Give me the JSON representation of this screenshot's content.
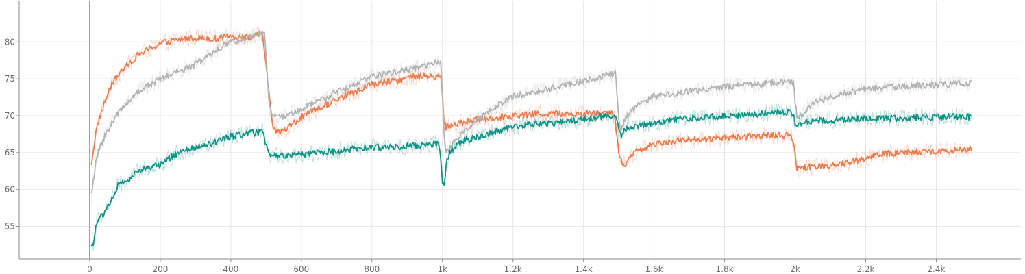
{
  "chart_data": {
    "type": "line",
    "title": "",
    "xlabel": "",
    "ylabel": "",
    "xlim": [
      -200,
      2640
    ],
    "ylim": [
      50.6,
      85.5
    ],
    "grid": true,
    "legend": "none",
    "x_ticks": [
      0,
      200,
      400,
      600,
      800,
      1000,
      1200,
      1400,
      1600,
      1800,
      2000,
      2200,
      2400
    ],
    "x_tick_labels": [
      "0",
      "200",
      "400",
      "600",
      "800",
      "1k",
      "1.2k",
      "1.4k",
      "1.6k",
      "1.8k",
      "2k",
      "2.2k",
      "2.4k"
    ],
    "y_ticks": [
      55,
      60,
      65,
      70,
      75,
      80
    ],
    "y_tick_labels": [
      "55",
      "60",
      "65",
      "70",
      "75",
      "80"
    ],
    "series": [
      {
        "color": "#ef7b4d",
        "x": [
          5,
          20,
          40,
          60,
          80,
          100,
          130,
          160,
          200,
          250,
          300,
          350,
          400,
          450,
          490,
          500,
          510,
          520,
          540,
          560,
          600,
          650,
          700,
          750,
          800,
          850,
          900,
          950,
          980,
          995,
          1000,
          1005,
          1010,
          1020,
          1050,
          1100,
          1150,
          1200,
          1250,
          1300,
          1350,
          1400,
          1450,
          1480,
          1490,
          1495,
          1500,
          1510,
          1520,
          1550,
          1600,
          1650,
          1700,
          1750,
          1800,
          1850,
          1900,
          1950,
          1990,
          1995,
          2000,
          2005,
          2010,
          2030,
          2050,
          2100,
          2150,
          2200,
          2250,
          2300,
          2350,
          2400,
          2450,
          2500
        ],
        "y": [
          63.6,
          68.5,
          71.5,
          74.0,
          75.5,
          76.5,
          78.0,
          78.8,
          79.8,
          80.3,
          80.6,
          80.4,
          80.8,
          80.6,
          81.0,
          77.0,
          72.0,
          68.0,
          67.8,
          68.3,
          69.8,
          71.0,
          72.2,
          73.2,
          74.3,
          74.6,
          75.1,
          75.5,
          75.2,
          75.4,
          73.0,
          69.0,
          68.5,
          68.7,
          69.0,
          69.5,
          69.8,
          70.0,
          70.2,
          70.3,
          70.3,
          70.3,
          70.4,
          70.5,
          69.5,
          67.0,
          65.0,
          63.6,
          63.5,
          65.2,
          66.2,
          66.6,
          66.7,
          66.8,
          67.0,
          67.1,
          67.3,
          67.4,
          67.2,
          66.5,
          64.5,
          63.0,
          62.8,
          63.0,
          63.2,
          63.3,
          63.6,
          64.3,
          64.8,
          65.0,
          65.1,
          65.2,
          65.3,
          65.5
        ]
      },
      {
        "color": "#b4b4b4",
        "x": [
          5,
          20,
          40,
          60,
          80,
          100,
          130,
          160,
          200,
          250,
          300,
          350,
          400,
          450,
          480,
          495,
          500,
          505,
          510,
          520,
          540,
          560,
          600,
          650,
          700,
          750,
          800,
          850,
          900,
          950,
          980,
          995,
          1000,
          1005,
          1010,
          1020,
          1050,
          1100,
          1150,
          1200,
          1250,
          1300,
          1350,
          1400,
          1450,
          1480,
          1490,
          1495,
          1500,
          1505,
          1510,
          1520,
          1550,
          1600,
          1650,
          1700,
          1750,
          1800,
          1850,
          1900,
          1950,
          1990,
          1995,
          2000,
          2005,
          2010,
          2030,
          2050,
          2100,
          2150,
          2200,
          2250,
          2300,
          2350,
          2400,
          2450,
          2500
        ],
        "y": [
          59.2,
          64.5,
          67.0,
          68.8,
          70.3,
          71.5,
          73.0,
          74.0,
          74.9,
          76.0,
          77.0,
          78.5,
          80.1,
          80.4,
          81.2,
          81.0,
          78.0,
          74.0,
          71.0,
          69.8,
          69.8,
          70.0,
          70.9,
          72.0,
          73.2,
          74.2,
          75.3,
          75.8,
          76.2,
          76.7,
          77.2,
          77.4,
          73.0,
          67.0,
          65.0,
          65.7,
          67.3,
          69.5,
          71.2,
          72.6,
          73.1,
          73.6,
          74.3,
          74.7,
          75.3,
          75.6,
          75.8,
          73.0,
          70.0,
          68.0,
          68.4,
          69.8,
          71.3,
          72.6,
          72.9,
          73.3,
          73.6,
          73.9,
          74.1,
          74.3,
          74.5,
          74.7,
          74.4,
          72.0,
          70.0,
          69.6,
          70.8,
          71.7,
          72.6,
          73.2,
          73.6,
          73.8,
          74.0,
          74.1,
          74.2,
          74.3,
          74.4
        ]
      },
      {
        "color": "#0e9486",
        "x": [
          5,
          10,
          20,
          40,
          60,
          80,
          100,
          130,
          160,
          200,
          250,
          300,
          350,
          400,
          450,
          490,
          500,
          510,
          520,
          560,
          600,
          650,
          700,
          750,
          800,
          850,
          900,
          950,
          990,
          995,
          1000,
          1005,
          1010,
          1020,
          1040,
          1060,
          1100,
          1150,
          1200,
          1250,
          1300,
          1350,
          1400,
          1450,
          1490,
          1495,
          1500,
          1505,
          1510,
          1520,
          1550,
          1600,
          1650,
          1700,
          1750,
          1800,
          1850,
          1900,
          1950,
          1990,
          1995,
          2000,
          2005,
          2010,
          2030,
          2050,
          2100,
          2150,
          2200,
          2250,
          2300,
          2350,
          2400,
          2450,
          2500
        ],
        "y": [
          52.4,
          52.6,
          55.5,
          56.8,
          58.5,
          60.5,
          61.0,
          62.2,
          63.0,
          63.4,
          65.0,
          65.6,
          66.3,
          67.2,
          67.6,
          67.8,
          66.0,
          64.8,
          64.6,
          64.6,
          64.8,
          65.0,
          65.2,
          65.5,
          65.7,
          65.8,
          65.9,
          66.0,
          66.3,
          64.0,
          61.0,
          60.5,
          63.5,
          65.0,
          66.0,
          66.6,
          67.1,
          67.9,
          68.5,
          68.9,
          69.0,
          69.2,
          69.5,
          69.9,
          70.0,
          69.3,
          68.0,
          67.3,
          67.6,
          68.3,
          68.6,
          69.0,
          69.4,
          69.7,
          69.8,
          70.0,
          70.1,
          70.3,
          70.5,
          70.6,
          70.2,
          69.0,
          68.7,
          69.0,
          69.2,
          69.3,
          69.4,
          69.5,
          69.6,
          69.6,
          69.7,
          69.8,
          69.8,
          69.9,
          69.8
        ]
      }
    ]
  }
}
